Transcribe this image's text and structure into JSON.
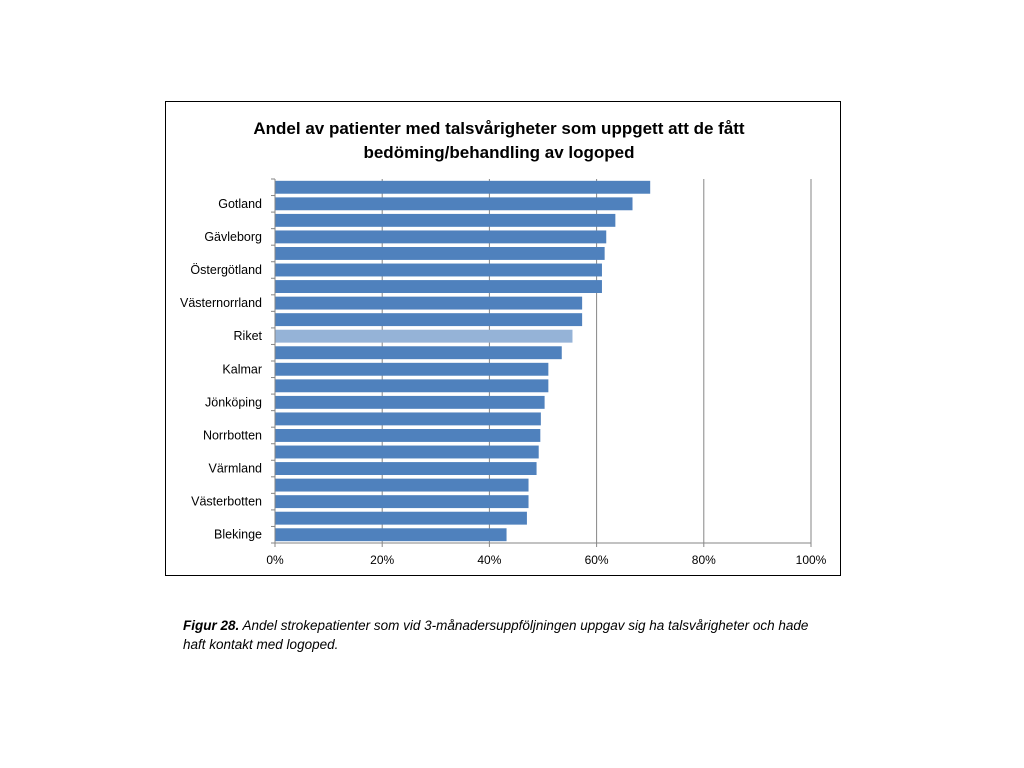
{
  "chart_data": {
    "type": "bar",
    "orientation": "horizontal",
    "title": "Andel av patienter med talsvårigheter som uppgett att de fått bedöming/behandling av logoped",
    "title_lines": [
      "Andel av patienter med talsvårigheter som uppgett att de fått",
      "bedöming/behandling av logoped"
    ],
    "categories": [
      "",
      "Gotland",
      "",
      "Gävleborg",
      "",
      "Östergötland",
      "",
      "Västernorrland",
      "",
      "Riket",
      "",
      "Kalmar",
      "",
      "Jönköping",
      "",
      "Norrbotten",
      "",
      "Värmland",
      "",
      "Västerbotten",
      "",
      "Blekinge"
    ],
    "values": [
      0.7,
      0.667,
      0.635,
      0.618,
      0.615,
      0.61,
      0.61,
      0.573,
      0.573,
      0.555,
      0.535,
      0.51,
      0.51,
      0.503,
      0.496,
      0.495,
      0.492,
      0.488,
      0.473,
      0.473,
      0.47,
      0.432
    ],
    "highlight_index": 9,
    "xlim": [
      0,
      1
    ],
    "x_ticks": [
      0,
      0.2,
      0.4,
      0.6,
      0.8,
      1.0
    ],
    "x_tick_labels": [
      "0%",
      "20%",
      "40%",
      "60%",
      "80%",
      "100%"
    ],
    "grid": true,
    "legend": "none",
    "xlabel": "",
    "ylabel": ""
  },
  "colors": {
    "bar": "#4f81bd",
    "bar_highlight": "#95b3d7",
    "grid": "#868686",
    "axis": "#868686"
  },
  "caption": {
    "label": "Figur 28.",
    "text": " Andel strokepatienter som vid 3-månadersuppföljningen uppgav sig ha talsvårigheter och hade haft kontakt med logoped."
  }
}
